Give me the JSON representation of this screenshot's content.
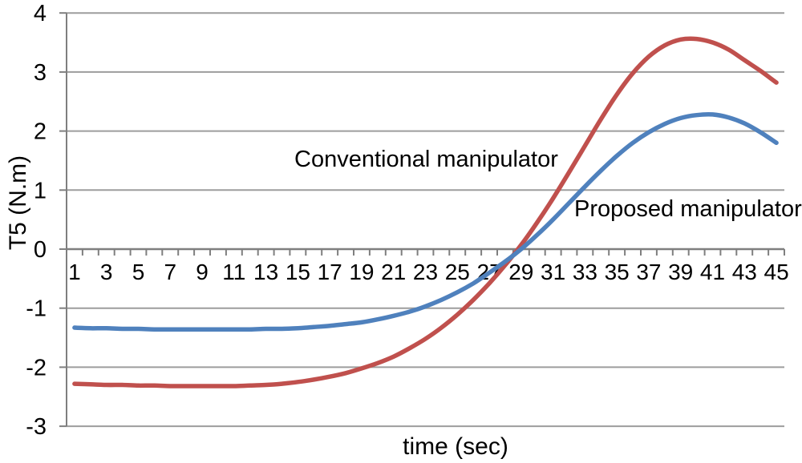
{
  "chart_data": {
    "type": "line",
    "title": "",
    "xlabel": "time (sec)",
    "ylabel": "T5 (N.m)",
    "x": [
      1,
      2,
      3,
      4,
      5,
      6,
      7,
      8,
      9,
      10,
      11,
      12,
      13,
      14,
      15,
      16,
      17,
      18,
      19,
      20,
      21,
      22,
      23,
      24,
      25,
      26,
      27,
      28,
      29,
      30,
      31,
      32,
      33,
      34,
      35,
      36,
      37,
      38,
      39,
      40,
      41,
      42,
      43,
      44,
      45
    ],
    "x_tick_labels": [
      "1",
      "3",
      "5",
      "7",
      "9",
      "11",
      "13",
      "15",
      "17",
      "19",
      "21",
      "23",
      "25",
      "27",
      "29",
      "31",
      "33",
      "35",
      "37",
      "39",
      "41",
      "43",
      "45"
    ],
    "y_ticks": [
      "4",
      "3",
      "2",
      "1",
      "0",
      "-1",
      "-2",
      "-3"
    ],
    "ylim": [
      -3,
      4
    ],
    "xlim": [
      0,
      46
    ],
    "grid": "horizontal gridlines at every integer y",
    "legend_position": "inline text annotations near curves",
    "series": [
      {
        "name": "Conventional manipulator",
        "color": "#C0504D",
        "values": [
          -2.28,
          -2.29,
          -2.3,
          -2.3,
          -2.31,
          -2.31,
          -2.32,
          -2.32,
          -2.32,
          -2.32,
          -2.32,
          -2.31,
          -2.3,
          -2.28,
          -2.25,
          -2.21,
          -2.16,
          -2.1,
          -2.02,
          -1.93,
          -1.82,
          -1.68,
          -1.52,
          -1.33,
          -1.11,
          -0.86,
          -0.58,
          -0.27,
          0.07,
          0.45,
          0.86,
          1.3,
          1.75,
          2.2,
          2.62,
          2.98,
          3.26,
          3.45,
          3.55,
          3.56,
          3.5,
          3.38,
          3.2,
          3.02,
          2.82
        ]
      },
      {
        "name": "Proposed manipulator",
        "color": "#4F81BD",
        "values": [
          -1.33,
          -1.34,
          -1.34,
          -1.35,
          -1.35,
          -1.36,
          -1.36,
          -1.36,
          -1.36,
          -1.36,
          -1.36,
          -1.36,
          -1.35,
          -1.35,
          -1.34,
          -1.32,
          -1.3,
          -1.27,
          -1.24,
          -1.19,
          -1.13,
          -1.06,
          -0.97,
          -0.86,
          -0.73,
          -0.58,
          -0.4,
          -0.21,
          0.0,
          0.24,
          0.5,
          0.78,
          1.06,
          1.33,
          1.58,
          1.8,
          1.98,
          2.12,
          2.22,
          2.27,
          2.28,
          2.23,
          2.13,
          1.98,
          1.8
        ]
      }
    ],
    "colors": {
      "axis": "#7f7f7f",
      "grid": "#9d9d9d",
      "text": "#000000",
      "background": "#ffffff"
    }
  }
}
